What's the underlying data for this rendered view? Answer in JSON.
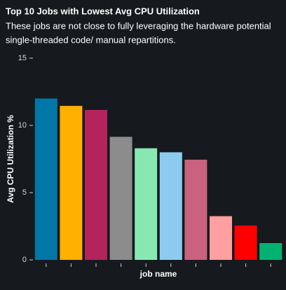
{
  "chart_data": {
    "type": "bar",
    "title": "Top 10 Jobs with Lowest Avg CPU Utilization",
    "subtitle": [
      "These jobs are not close to fully leveraging the hardware potential",
      "single-threaded code/ manual repartitions."
    ],
    "x_label": "job name",
    "y_label": "Avg CPU Utilization %",
    "categories": [
      null,
      null,
      null,
      null,
      null,
      null,
      null,
      null,
      null,
      null
    ],
    "values": [
      12.0,
      11.45,
      11.15,
      9.15,
      8.3,
      8.0,
      7.45,
      3.25,
      2.55,
      1.25
    ],
    "colors": [
      "#0077a6",
      "#ffb000",
      "#b5235c",
      "#8c8c8c",
      "#88e8b3",
      "#8ccbef",
      "#c9617f",
      "#ff9fa0",
      "#ff0000",
      "#00b371"
    ],
    "ylim": [
      0,
      15
    ],
    "yticks": [
      0,
      5,
      10,
      15
    ]
  }
}
